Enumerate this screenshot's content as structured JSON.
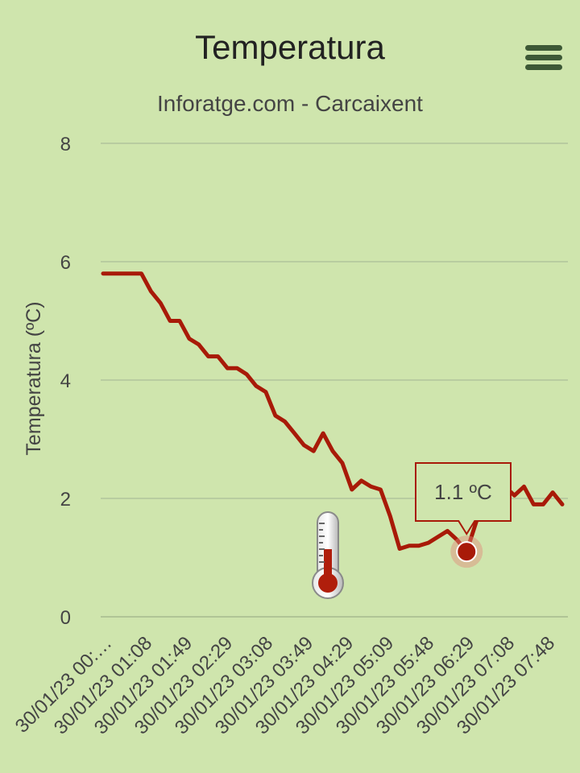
{
  "header": {
    "title": "Temperatura",
    "subtitle": "Inforatge.com - Carcaixent"
  },
  "icons": {
    "menu": "hamburger-menu-icon",
    "thermometer": "thermometer-icon"
  },
  "colors": {
    "background": "#cfe5ad",
    "series": "#a81a08",
    "grid": "#b8cca0",
    "tooltip_border": "#a81a08"
  },
  "tooltip": {
    "text": "1.1 ºC"
  },
  "chart_data": {
    "type": "line",
    "title": "Temperatura",
    "subtitle": "Inforatge.com - Carcaixent",
    "ylabel": "Temperatura (ºC)",
    "xlabel": "",
    "ylim": [
      0,
      8
    ],
    "yticks": [
      "0",
      "2",
      "4",
      "6",
      "8"
    ],
    "grid": true,
    "xtick_labels": [
      "30/01/23 00:…",
      "30/01/23 01:08",
      "30/01/23 01:49",
      "30/01/23 02:29",
      "30/01/23 03:08",
      "30/01/23 03:49",
      "30/01/23 04:29",
      "30/01/23 05:09",
      "30/01/23 05:48",
      "30/01/23 06:29",
      "30/01/23 07:08",
      "30/01/23 07:48"
    ],
    "series": [
      {
        "values": [
          5.8,
          5.8,
          5.8,
          5.8,
          5.8,
          5.5,
          5.3,
          5.0,
          5.0,
          4.7,
          4.6,
          4.4,
          4.4,
          4.2,
          4.2,
          4.1,
          3.9,
          3.8,
          3.4,
          3.3,
          3.1,
          2.9,
          2.8,
          3.1,
          2.8,
          2.6,
          2.15,
          2.3,
          2.2,
          2.15,
          1.7,
          1.15,
          1.2,
          1.2,
          1.25,
          1.35,
          1.45,
          1.3,
          1.1,
          1.6,
          2.1,
          2.2,
          2.2,
          2.05,
          2.2,
          1.9,
          1.9,
          2.1,
          1.9
        ]
      }
    ],
    "highlight": {
      "index": 38,
      "value": 1.1,
      "label": "1.1 ºC"
    }
  }
}
